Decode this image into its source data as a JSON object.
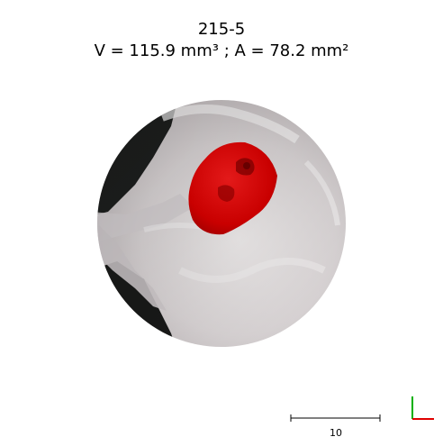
{
  "header": {
    "sample_id": "215-5",
    "measurement": "V = 115.9 mm³ ; A = 78.2 mm²"
  },
  "scale_bar": {
    "label": "10"
  },
  "colors": {
    "segmentation": "#d60000",
    "axis_x": "#e00000",
    "axis_y": "#00b000"
  }
}
